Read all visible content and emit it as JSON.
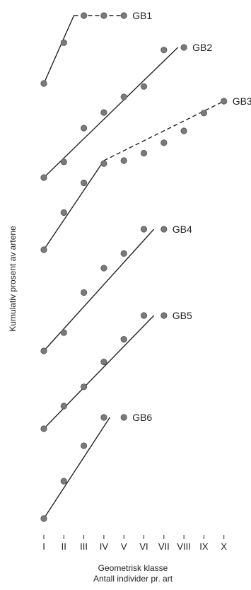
{
  "chart_data": {
    "type": "scatter",
    "title": "",
    "xlabel": "Geometrisk klasse",
    "xlabel_sub": "Antall individer pr. art",
    "ylabel": "Kumulativ prosent av artene",
    "x_categories": [
      "I",
      "II",
      "III",
      "IV",
      "V",
      "VI",
      "VII",
      "VIII",
      "IX",
      "X"
    ],
    "grid": false,
    "legend": "none",
    "note": "Panels are stacked vertically with no printed y-axis scale; y values are cumulative percent within each panel (0-100).",
    "series": [
      {
        "name": "GB1",
        "points": [
          [
            1,
            0
          ],
          [
            2,
            60
          ],
          [
            3,
            100
          ],
          [
            4,
            100
          ],
          [
            5,
            100
          ]
        ],
        "lines": [
          {
            "from": [
              1,
              0
            ],
            "to": [
              2.5,
              100
            ],
            "dashed": false
          },
          {
            "from": [
              2.5,
              100
            ],
            "to": [
              5,
              100
            ],
            "dashed": true
          }
        ]
      },
      {
        "name": "GB2",
        "points": [
          [
            1,
            0
          ],
          [
            2,
            12
          ],
          [
            3,
            38
          ],
          [
            4,
            50
          ],
          [
            5,
            62
          ],
          [
            6,
            70
          ],
          [
            7,
            98
          ],
          [
            8,
            100
          ]
        ],
        "lines": [
          {
            "from": [
              1,
              0
            ],
            "to": [
              7.7,
              100
            ],
            "dashed": false
          }
        ]
      },
      {
        "name": "GB3",
        "points": [
          [
            1,
            0
          ],
          [
            2,
            25
          ],
          [
            3,
            45
          ],
          [
            4,
            58
          ],
          [
            5,
            60
          ],
          [
            6,
            65
          ],
          [
            7,
            72
          ],
          [
            8,
            80
          ],
          [
            9,
            92
          ],
          [
            10,
            100
          ]
        ],
        "lines": [
          {
            "from": [
              1,
              0
            ],
            "to": [
              4,
              60
            ],
            "dashed": false
          },
          {
            "from": [
              4,
              60
            ],
            "to": [
              10,
              100
            ],
            "dashed": true
          }
        ]
      },
      {
        "name": "GB4",
        "points": [
          [
            1,
            0
          ],
          [
            2,
            15
          ],
          [
            3,
            48
          ],
          [
            4,
            68
          ],
          [
            5,
            80
          ],
          [
            6,
            100
          ],
          [
            7,
            100
          ]
        ],
        "lines": [
          {
            "from": [
              1,
              0
            ],
            "to": [
              6.5,
              100
            ],
            "dashed": false
          }
        ]
      },
      {
        "name": "GB5",
        "points": [
          [
            1,
            0
          ],
          [
            2,
            20
          ],
          [
            3,
            37
          ],
          [
            4,
            59
          ],
          [
            5,
            79
          ],
          [
            6,
            100
          ],
          [
            7,
            100
          ]
        ],
        "lines": [
          {
            "from": [
              1,
              0
            ],
            "to": [
              6.5,
              100
            ],
            "dashed": false
          }
        ]
      },
      {
        "name": "GB6",
        "points": [
          [
            1,
            0
          ],
          [
            2,
            37
          ],
          [
            3,
            72
          ],
          [
            4,
            100
          ],
          [
            5,
            100
          ]
        ],
        "lines": [
          {
            "from": [
              1,
              0
            ],
            "to": [
              4.3,
              100
            ],
            "dashed": false
          }
        ]
      }
    ]
  }
}
